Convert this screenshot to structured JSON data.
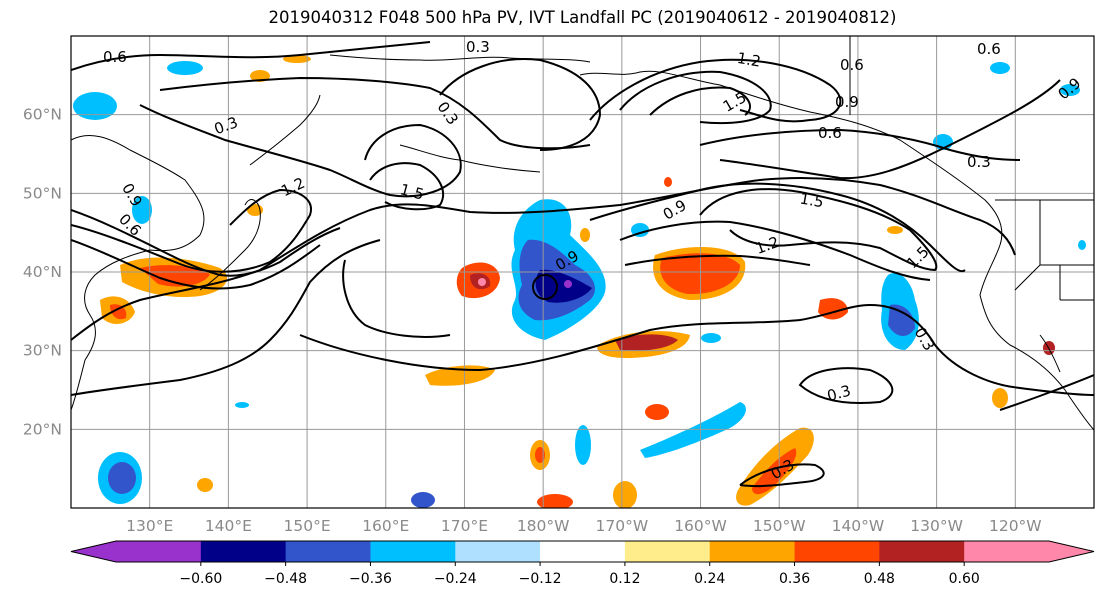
{
  "title": "2019040312 F048 500 hPa PV, IVT Landfall PC (2019040612 - 2019040812)",
  "map": {
    "lat_labels": [
      "60°N",
      "50°N",
      "40°N",
      "30°N",
      "20°N"
    ],
    "lat_values": [
      60,
      50,
      40,
      30,
      20
    ],
    "lon_labels": [
      "130°E",
      "140°E",
      "150°E",
      "160°E",
      "170°E",
      "180°W",
      "170°W",
      "160°W",
      "150°W",
      "140°W",
      "130°W",
      "120°W"
    ],
    "lon_values": [
      130,
      140,
      150,
      160,
      170,
      180,
      190,
      200,
      210,
      220,
      230,
      240
    ],
    "extent": {
      "lon": [
        120,
        250
      ],
      "lat": [
        10,
        70
      ]
    },
    "grid": true,
    "contour_labels": [
      "0.6",
      "0.3",
      "0.3",
      "0.3",
      "1.2",
      "1.5",
      "0.9",
      "0.6",
      "0.6",
      "0.6",
      "0.3",
      "0.9",
      "1.5",
      "1.2",
      "1.5",
      "1.2",
      "1.5",
      "0.9",
      "0.6",
      "0.9",
      "0.9",
      "0.3",
      "0.3",
      "0.3"
    ]
  },
  "colorbar": {
    "tick_labels": [
      "−0.60",
      "−0.48",
      "−0.36",
      "−0.24",
      "−0.12",
      "0.12",
      "0.24",
      "0.36",
      "0.48",
      "0.60"
    ],
    "tick_values": [
      -0.6,
      -0.48,
      -0.36,
      -0.24,
      -0.12,
      0.12,
      0.24,
      0.36,
      0.48,
      0.6
    ],
    "colors": [
      "#9932cc",
      "#000088",
      "#3355cc",
      "#00bfff",
      "#b0e0ff",
      "#ffffff",
      "#ffec8b",
      "#ffa500",
      "#ff4500",
      "#b22222",
      "#ff88aa"
    ],
    "extend": "both"
  }
}
